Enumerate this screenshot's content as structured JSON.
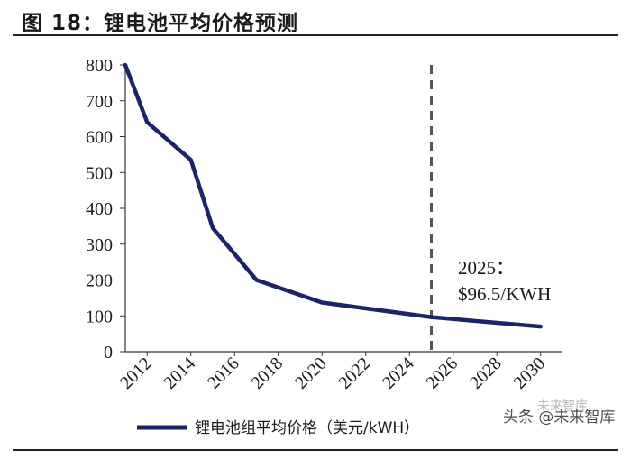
{
  "figure": {
    "title": "图 18：锂电池平均价格预测"
  },
  "watermark": {
    "text": "头条 @未来智库",
    "logo_text": "未来智库"
  },
  "chart_data": {
    "type": "line",
    "x": [
      2011,
      2012,
      2014,
      2015,
      2017,
      2020,
      2025,
      2030
    ],
    "series": [
      {
        "name": "锂电池组平均价格（美元/kWH）",
        "values": [
          800,
          640,
          535,
          345,
          200,
          137,
          96.5,
          70
        ],
        "color": "#1c2366"
      }
    ],
    "x_ticks": [
      "2012",
      "2014",
      "2016",
      "2018",
      "2020",
      "2022",
      "2024",
      "2026",
      "2028",
      "2030"
    ],
    "y_ticks": [
      "0",
      "100",
      "200",
      "300",
      "400",
      "500",
      "600",
      "700",
      "800"
    ],
    "xlim": [
      2011,
      2031
    ],
    "ylim": [
      0,
      800
    ],
    "vline": {
      "x": 2025,
      "style": "dashed",
      "color": "#555555"
    },
    "annotation": {
      "line1": "2025：",
      "line2": "$96.5/KWH",
      "x": 2025,
      "y": 96.5
    },
    "legend": {
      "placement": "bottom-left"
    },
    "grid": false
  }
}
